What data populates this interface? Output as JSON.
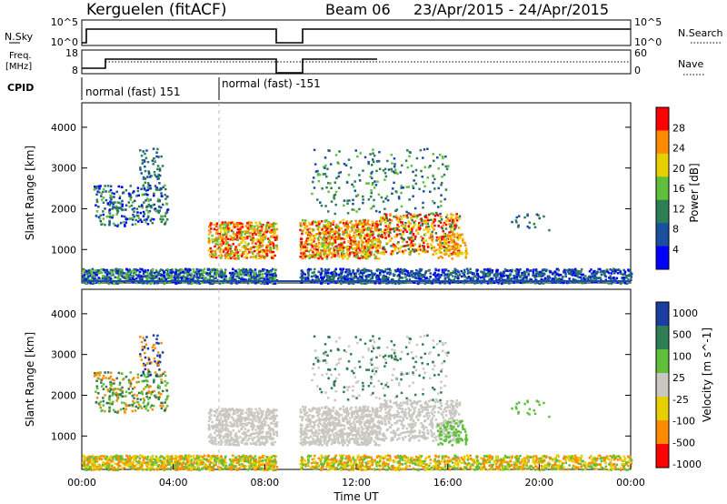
{
  "header": {
    "station": "Kerguelen (fitACF)",
    "beam": "Beam 06",
    "dates": "23/Apr/2015 - 24/Apr/2015"
  },
  "strips": {
    "sky_label": "N.Sky",
    "sky_ticks": [
      "10^5",
      "10^0"
    ],
    "search_label": "N.Search",
    "search_ticks": [
      "10^5",
      "10^0"
    ],
    "freq_label_1": "Freq.",
    "freq_label_2": "[MHz]",
    "freq_ticks": [
      "18",
      "8"
    ],
    "nave_label": "Nave",
    "nave_ticks": [
      "60",
      "0"
    ],
    "cpid_label": "CPID",
    "cpid_segments": [
      {
        "label": "normal (fast) 151",
        "start": 0,
        "end": 6
      },
      {
        "label": "normal (fast) -151",
        "start": 6,
        "end": 24
      }
    ]
  },
  "chart_data": [
    {
      "type": "heatmap",
      "name": "power",
      "ylabel": "Slant Range [km]",
      "ylim": [
        180,
        4600
      ],
      "yticks": [
        1000,
        2000,
        3000,
        4000
      ],
      "xlim": [
        0,
        24
      ],
      "colorbar_label": "Power [dB]",
      "colorbar_ticks": [
        "28",
        "24",
        "20",
        "16",
        "12",
        "8",
        "4"
      ],
      "colorbar_values": [
        28,
        24,
        20,
        16,
        12,
        8,
        4
      ],
      "colorbar_range": [
        0,
        32
      ],
      "colors": [
        "#0000ff",
        "#1a4fa0",
        "#2e7d55",
        "#5fbf3a",
        "#e8d000",
        "#ff8c00",
        "#ff0000"
      ]
    },
    {
      "type": "heatmap",
      "name": "velocity",
      "ylabel": "Slant Range [km]",
      "ylim": [
        180,
        4600
      ],
      "yticks": [
        1000,
        2000,
        3000,
        4000
      ],
      "xlim": [
        0,
        24
      ],
      "xlabel": "Time UT",
      "xticks": [
        "00:00",
        "04:00",
        "08:00",
        "12:00",
        "16:00",
        "20:00",
        "00:00"
      ],
      "colorbar_label": "Velocity [m s^-1]",
      "colorbar_ticks": [
        "1000",
        "500",
        "100",
        "25",
        "-25",
        "-100",
        "-500",
        "-1000"
      ],
      "colors": [
        "#1a3fa0",
        "#2e7d55",
        "#5fbf3a",
        "#c8c8c0",
        "#e8d000",
        "#ff8c00",
        "#ff0000"
      ]
    }
  ]
}
